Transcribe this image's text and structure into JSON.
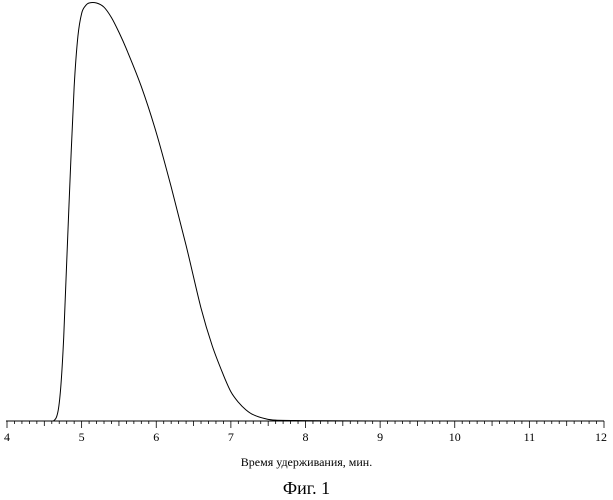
{
  "chart_data": {
    "type": "line",
    "xlabel": "Время удерживания, мин.",
    "ylabel": "",
    "xlim": [
      4,
      12
    ],
    "ylim": [
      0,
      1
    ],
    "xticks": [
      "4",
      "5",
      "6",
      "7",
      "8",
      "9",
      "10",
      "11",
      "12"
    ],
    "grid": false,
    "series": [
      {
        "x": [
          4.0,
          4.5,
          4.62,
          4.68,
          4.72,
          4.76,
          4.8,
          4.85,
          4.9,
          4.95,
          5.0,
          5.05,
          5.1,
          5.2,
          5.3,
          5.4,
          5.5,
          5.6,
          5.8,
          6.0,
          6.2,
          6.4,
          6.6,
          6.75,
          6.9,
          7.0,
          7.1,
          7.2,
          7.3,
          7.45,
          7.6,
          8.0,
          9.0,
          10.0,
          11.0,
          12.0
        ],
        "values": [
          0.0,
          0.0,
          0.0,
          0.02,
          0.08,
          0.2,
          0.38,
          0.6,
          0.8,
          0.92,
          0.975,
          0.993,
          1.0,
          1.0,
          0.99,
          0.965,
          0.93,
          0.89,
          0.8,
          0.69,
          0.56,
          0.42,
          0.27,
          0.18,
          0.11,
          0.07,
          0.045,
          0.027,
          0.015,
          0.006,
          0.002,
          0.001,
          0.0,
          0.0,
          0.0,
          0.0
        ]
      }
    ]
  },
  "caption": "Фиг. 1"
}
